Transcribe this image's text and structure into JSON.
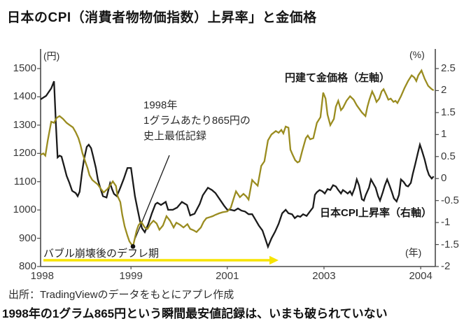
{
  "title": "日本のCPI（消費者物物価指数）上昇率」と金価格",
  "source": "出所：TradingViewのデータをもとにアプレ作成",
  "caption": "1998年の1グラム865円という瞬間最安値記録は、いまも破られていない",
  "colors": {
    "gold": "#9a8c20",
    "cpi": "#1b1b1b",
    "arrow": "#f7e400",
    "axis": "#4a4a4a"
  },
  "chart_data": {
    "type": "line",
    "title": "日本のCPI（消費者物物価指数）上昇率」と金価格",
    "unit_left": "(円)",
    "unit_right": "(%)",
    "unit_x": "(年)",
    "grid": false,
    "ylim_left": [
      800,
      1500
    ],
    "yticks_left": [
      "1500",
      "1400",
      "1300",
      "1200",
      "1100",
      "1000",
      "900",
      "800"
    ],
    "ylim_right": [
      -2,
      2.5
    ],
    "yticks_right": [
      "2.5",
      "2",
      "1.5",
      "1",
      "0.5",
      "0",
      "-0.5",
      "-1",
      "-1.5",
      "-2"
    ],
    "xticks": [
      {
        "label": "1998",
        "pos": 0.004
      },
      {
        "label": "1999",
        "pos": 0.229
      },
      {
        "label": "2001",
        "pos": 0.473
      },
      {
        "label": "2003",
        "pos": 0.718
      },
      {
        "label": "2004",
        "pos": 0.963
      }
    ],
    "legend": {
      "gold": "円建て金価格（左軸）",
      "cpi": "日本CPI上昇率（右軸）"
    },
    "annotations": {
      "record_low": {
        "line1": "1998年",
        "line2": "1グラムあたり865円の",
        "line3": "史上最低記録",
        "value_yen": 865
      },
      "deflation": {
        "label": "バブル崩壊後のデフレ期"
      }
    },
    "series": [
      {
        "name": "日本CPI上昇率（右軸）",
        "axis": "right",
        "color": "#1b1b1b",
        "points": [
          [
            0.0,
            1.8
          ],
          [
            0.007,
            1.84
          ],
          [
            0.014,
            1.88
          ],
          [
            0.02,
            1.96
          ],
          [
            0.027,
            2.05
          ],
          [
            0.034,
            2.21
          ],
          [
            0.039,
            1.2
          ],
          [
            0.043,
            0.48
          ],
          [
            0.048,
            0.52
          ],
          [
            0.053,
            0.5
          ],
          [
            0.059,
            0.3
          ],
          [
            0.066,
            0.06
          ],
          [
            0.073,
            -0.1
          ],
          [
            0.08,
            -0.28
          ],
          [
            0.089,
            -0.33
          ],
          [
            0.094,
            -0.4
          ],
          [
            0.099,
            -0.3
          ],
          [
            0.105,
            0.14
          ],
          [
            0.11,
            0.43
          ],
          [
            0.117,
            0.72
          ],
          [
            0.122,
            0.77
          ],
          [
            0.128,
            0.69
          ],
          [
            0.133,
            0.51
          ],
          [
            0.14,
            0.24
          ],
          [
            0.145,
            -0.02
          ],
          [
            0.151,
            -0.21
          ],
          [
            0.158,
            -0.4
          ],
          [
            0.167,
            -0.43
          ],
          [
            0.176,
            -0.11
          ],
          [
            0.181,
            -0.24
          ],
          [
            0.186,
            -0.35
          ],
          [
            0.193,
            -0.4
          ],
          [
            0.202,
            -0.21
          ],
          [
            0.211,
            0.0
          ],
          [
            0.22,
            0.24
          ],
          [
            0.229,
            0.24
          ],
          [
            0.234,
            -0.08
          ],
          [
            0.239,
            -0.4
          ],
          [
            0.246,
            -0.71
          ],
          [
            0.252,
            -0.97
          ],
          [
            0.257,
            -1.13
          ],
          [
            0.264,
            -1.22
          ],
          [
            0.273,
            -1.03
          ],
          [
            0.282,
            -0.79
          ],
          [
            0.291,
            -0.58
          ],
          [
            0.296,
            -0.55
          ],
          [
            0.305,
            -0.6
          ],
          [
            0.317,
            -0.53
          ],
          [
            0.323,
            -0.71
          ],
          [
            0.335,
            -0.71
          ],
          [
            0.346,
            -0.66
          ],
          [
            0.358,
            -0.53
          ],
          [
            0.371,
            -0.6
          ],
          [
            0.379,
            -0.84
          ],
          [
            0.39,
            -0.8
          ],
          [
            0.403,
            -0.58
          ],
          [
            0.411,
            -0.38
          ],
          [
            0.424,
            -0.21
          ],
          [
            0.434,
            -0.26
          ],
          [
            0.443,
            -0.33
          ],
          [
            0.456,
            -0.5
          ],
          [
            0.465,
            -0.62
          ],
          [
            0.473,
            -0.71
          ],
          [
            0.482,
            -0.71
          ],
          [
            0.491,
            -0.73
          ],
          [
            0.5,
            -0.68
          ],
          [
            0.509,
            -0.73
          ],
          [
            0.518,
            -0.75
          ],
          [
            0.527,
            -0.81
          ],
          [
            0.536,
            -0.81
          ],
          [
            0.544,
            -0.93
          ],
          [
            0.553,
            -1.07
          ],
          [
            0.562,
            -1.18
          ],
          [
            0.569,
            -1.36
          ],
          [
            0.576,
            -1.55
          ],
          [
            0.585,
            -1.36
          ],
          [
            0.594,
            -1.21
          ],
          [
            0.603,
            -1.03
          ],
          [
            0.612,
            -0.79
          ],
          [
            0.621,
            -0.71
          ],
          [
            0.628,
            -0.79
          ],
          [
            0.637,
            -0.81
          ],
          [
            0.644,
            -0.9
          ],
          [
            0.651,
            -0.85
          ],
          [
            0.658,
            -0.87
          ],
          [
            0.665,
            -0.81
          ],
          [
            0.674,
            -0.85
          ],
          [
            0.683,
            -0.74
          ],
          [
            0.69,
            -0.66
          ],
          [
            0.695,
            -0.37
          ],
          [
            0.7,
            -0.31
          ],
          [
            0.707,
            -0.26
          ],
          [
            0.714,
            -0.29
          ],
          [
            0.72,
            -0.34
          ],
          [
            0.727,
            -0.24
          ],
          [
            0.734,
            -0.26
          ],
          [
            0.741,
            -0.15
          ],
          [
            0.748,
            -0.18
          ],
          [
            0.754,
            -0.26
          ],
          [
            0.761,
            -0.34
          ],
          [
            0.766,
            -0.26
          ],
          [
            0.771,
            -0.29
          ],
          [
            0.778,
            -0.34
          ],
          [
            0.784,
            -0.29
          ],
          [
            0.789,
            -0.37
          ],
          [
            0.796,
            -0.21
          ],
          [
            0.801,
            -0.02
          ],
          [
            0.807,
            -0.16
          ],
          [
            0.814,
            -0.47
          ],
          [
            0.819,
            -0.5
          ],
          [
            0.824,
            -0.37
          ],
          [
            0.832,
            -0.21
          ],
          [
            0.837,
            -0.02
          ],
          [
            0.842,
            -0.1
          ],
          [
            0.849,
            -0.21
          ],
          [
            0.855,
            -0.4
          ],
          [
            0.86,
            -0.5
          ],
          [
            0.867,
            -0.31
          ],
          [
            0.872,
            -0.16
          ],
          [
            0.878,
            -0.02
          ],
          [
            0.885,
            -0.18
          ],
          [
            0.89,
            -0.31
          ],
          [
            0.895,
            -0.45
          ],
          [
            0.902,
            -0.52
          ],
          [
            0.908,
            -0.37
          ],
          [
            0.913,
            -0.02
          ],
          [
            0.92,
            -0.08
          ],
          [
            0.926,
            -0.16
          ],
          [
            0.931,
            -0.18
          ],
          [
            0.938,
            -0.1
          ],
          [
            0.943,
            0.11
          ],
          [
            0.949,
            0.32
          ],
          [
            0.956,
            0.59
          ],
          [
            0.961,
            0.77
          ],
          [
            0.966,
            0.64
          ],
          [
            0.973,
            0.43
          ],
          [
            0.979,
            0.21
          ],
          [
            0.984,
            0.08
          ],
          [
            0.991,
            0.0
          ],
          [
            0.996,
            0.05
          ]
        ]
      },
      {
        "name": "円建て金価格（左軸）",
        "axis": "left",
        "color": "#9a8c20",
        "points": [
          [
            0.0,
            1195
          ],
          [
            0.007,
            1200
          ],
          [
            0.012,
            1192
          ],
          [
            0.018,
            1245
          ],
          [
            0.027,
            1312
          ],
          [
            0.034,
            1308
          ],
          [
            0.041,
            1326
          ],
          [
            0.048,
            1332
          ],
          [
            0.057,
            1322
          ],
          [
            0.066,
            1308
          ],
          [
            0.074,
            1300
          ],
          [
            0.082,
            1292
          ],
          [
            0.089,
            1275
          ],
          [
            0.096,
            1254
          ],
          [
            0.101,
            1230
          ],
          [
            0.106,
            1201
          ],
          [
            0.113,
            1172
          ],
          [
            0.119,
            1148
          ],
          [
            0.124,
            1123
          ],
          [
            0.131,
            1106
          ],
          [
            0.138,
            1098
          ],
          [
            0.145,
            1090
          ],
          [
            0.153,
            1074
          ],
          [
            0.16,
            1062
          ],
          [
            0.17,
            1075
          ],
          [
            0.183,
            1101
          ],
          [
            0.191,
            1085
          ],
          [
            0.195,
            1049
          ],
          [
            0.202,
            1028
          ],
          [
            0.207,
            983
          ],
          [
            0.213,
            942
          ],
          [
            0.22,
            909
          ],
          [
            0.225,
            889
          ],
          [
            0.234,
            871
          ],
          [
            0.243,
            926
          ],
          [
            0.248,
            946
          ],
          [
            0.255,
            958
          ],
          [
            0.264,
            938
          ],
          [
            0.271,
            933
          ],
          [
            0.278,
            950
          ],
          [
            0.286,
            962
          ],
          [
            0.294,
            952
          ],
          [
            0.301,
            930
          ],
          [
            0.31,
            945
          ],
          [
            0.319,
            978
          ],
          [
            0.328,
            962
          ],
          [
            0.337,
            938
          ],
          [
            0.344,
            955
          ],
          [
            0.353,
            948
          ],
          [
            0.362,
            938
          ],
          [
            0.372,
            950
          ],
          [
            0.379,
            933
          ],
          [
            0.388,
            928
          ],
          [
            0.395,
            922
          ],
          [
            0.406,
            938
          ],
          [
            0.413,
            958
          ],
          [
            0.42,
            971
          ],
          [
            0.429,
            975
          ],
          [
            0.436,
            978
          ],
          [
            0.443,
            983
          ],
          [
            0.452,
            988
          ],
          [
            0.461,
            992
          ],
          [
            0.473,
            995
          ],
          [
            0.482,
            1008
          ],
          [
            0.489,
            1040
          ],
          [
            0.495,
            1066
          ],
          [
            0.505,
            1045
          ],
          [
            0.514,
            1057
          ],
          [
            0.521,
            1048
          ],
          [
            0.527,
            1037
          ],
          [
            0.536,
            1106
          ],
          [
            0.541,
            1098
          ],
          [
            0.55,
            1086
          ],
          [
            0.559,
            1156
          ],
          [
            0.567,
            1172
          ],
          [
            0.576,
            1246
          ],
          [
            0.585,
            1267
          ],
          [
            0.596,
            1279
          ],
          [
            0.603,
            1273
          ],
          [
            0.61,
            1283
          ],
          [
            0.615,
            1271
          ],
          [
            0.621,
            1295
          ],
          [
            0.628,
            1291
          ],
          [
            0.633,
            1213
          ],
          [
            0.638,
            1197
          ],
          [
            0.645,
            1176
          ],
          [
            0.651,
            1168
          ],
          [
            0.656,
            1172
          ],
          [
            0.663,
            1209
          ],
          [
            0.672,
            1254
          ],
          [
            0.677,
            1263
          ],
          [
            0.683,
            1250
          ],
          [
            0.691,
            1254
          ],
          [
            0.7,
            1308
          ],
          [
            0.709,
            1328
          ],
          [
            0.716,
            1415
          ],
          [
            0.722,
            1394
          ],
          [
            0.727,
            1337
          ],
          [
            0.734,
            1300
          ],
          [
            0.743,
            1322
          ],
          [
            0.748,
            1365
          ],
          [
            0.754,
            1386
          ],
          [
            0.761,
            1353
          ],
          [
            0.766,
            1361
          ],
          [
            0.775,
            1386
          ],
          [
            0.784,
            1402
          ],
          [
            0.793,
            1390
          ],
          [
            0.801,
            1370
          ],
          [
            0.814,
            1345
          ],
          [
            0.823,
            1332
          ],
          [
            0.828,
            1365
          ],
          [
            0.833,
            1390
          ],
          [
            0.84,
            1419
          ],
          [
            0.846,
            1402
          ],
          [
            0.851,
            1382
          ],
          [
            0.858,
            1394
          ],
          [
            0.864,
            1419
          ],
          [
            0.869,
            1427
          ],
          [
            0.876,
            1406
          ],
          [
            0.881,
            1390
          ],
          [
            0.887,
            1394
          ],
          [
            0.894,
            1382
          ],
          [
            0.899,
            1386
          ],
          [
            0.904,
            1378
          ],
          [
            0.913,
            1402
          ],
          [
            0.922,
            1431
          ],
          [
            0.931,
            1456
          ],
          [
            0.94,
            1476
          ],
          [
            0.947,
            1468
          ],
          [
            0.952,
            1456
          ],
          [
            0.957,
            1476
          ],
          [
            0.965,
            1493
          ],
          [
            0.973,
            1464
          ],
          [
            0.982,
            1439
          ],
          [
            0.991,
            1427
          ],
          [
            0.996,
            1423
          ]
        ]
      }
    ]
  }
}
